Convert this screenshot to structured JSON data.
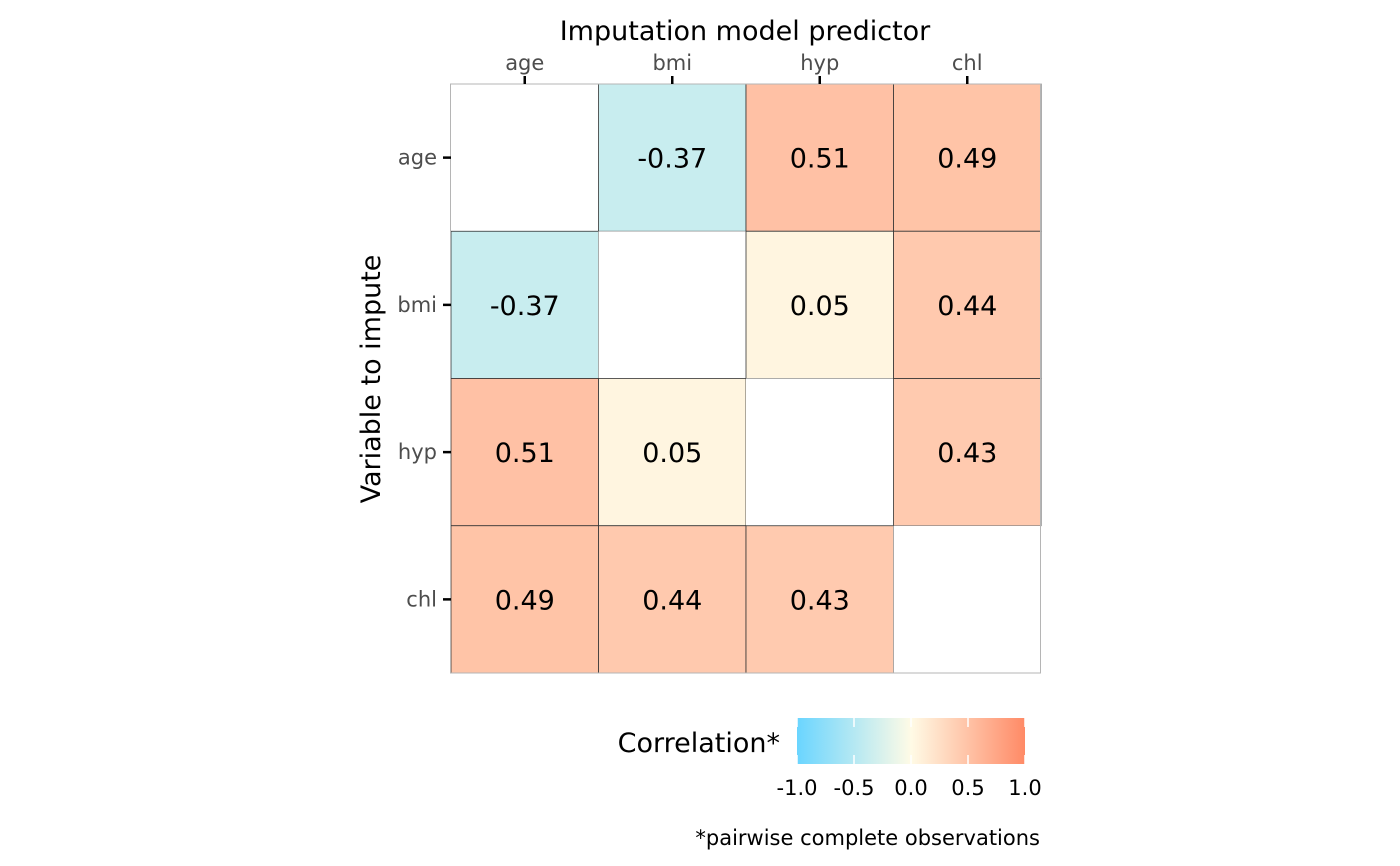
{
  "chart_data": {
    "type": "heatmap",
    "title": "Imputation model predictor",
    "xlabel": "Imputation model predictor",
    "ylabel": "Variable to impute",
    "x_categories": [
      "age",
      "bmi",
      "hyp",
      "chl"
    ],
    "y_categories": [
      "age",
      "bmi",
      "hyp",
      "chl"
    ],
    "cells": [
      {
        "row": "age",
        "col": "age",
        "value": null,
        "label": ""
      },
      {
        "row": "age",
        "col": "bmi",
        "value": -0.37,
        "label": "-0.37"
      },
      {
        "row": "age",
        "col": "hyp",
        "value": 0.51,
        "label": "0.51"
      },
      {
        "row": "age",
        "col": "chl",
        "value": 0.49,
        "label": "0.49"
      },
      {
        "row": "bmi",
        "col": "age",
        "value": -0.37,
        "label": "-0.37"
      },
      {
        "row": "bmi",
        "col": "bmi",
        "value": null,
        "label": ""
      },
      {
        "row": "bmi",
        "col": "hyp",
        "value": 0.05,
        "label": "0.05"
      },
      {
        "row": "bmi",
        "col": "chl",
        "value": 0.44,
        "label": "0.44"
      },
      {
        "row": "hyp",
        "col": "age",
        "value": 0.51,
        "label": "0.51"
      },
      {
        "row": "hyp",
        "col": "bmi",
        "value": 0.05,
        "label": "0.05"
      },
      {
        "row": "hyp",
        "col": "hyp",
        "value": null,
        "label": ""
      },
      {
        "row": "hyp",
        "col": "chl",
        "value": 0.43,
        "label": "0.43"
      },
      {
        "row": "chl",
        "col": "age",
        "value": 0.49,
        "label": "0.49"
      },
      {
        "row": "chl",
        "col": "bmi",
        "value": 0.44,
        "label": "0.44"
      },
      {
        "row": "chl",
        "col": "hyp",
        "value": 0.43,
        "label": "0.43"
      },
      {
        "row": "chl",
        "col": "chl",
        "value": null,
        "label": ""
      }
    ],
    "legend": {
      "title": "Correlation*",
      "position": "bottom",
      "range": [
        -1,
        1
      ],
      "ticks": [
        -1.0,
        -0.5,
        0.0,
        0.5,
        1.0
      ],
      "tick_labels": [
        "-1.0",
        "-0.5",
        "0.0",
        "0.5",
        "1.0"
      ],
      "colors": {
        "low": "#6ad5ff",
        "mid": "#fffbe6",
        "high": "#ff8a66"
      }
    },
    "caption": "*pairwise complete observations",
    "grid": false
  }
}
